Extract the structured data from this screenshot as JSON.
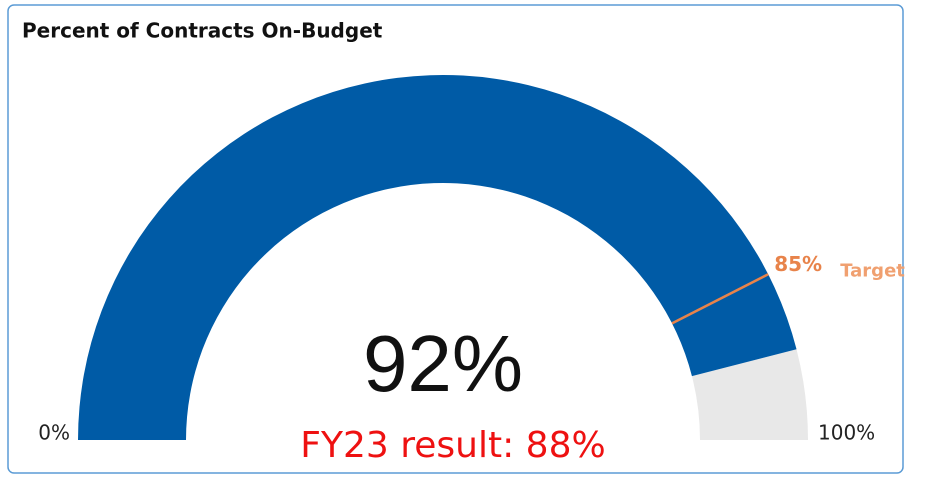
{
  "chart_data": {
    "type": "gauge",
    "title": "Percent of Contracts On-Budget",
    "values": [
      92
    ],
    "value_labels": [
      "92%"
    ],
    "color": "#005ba6",
    "track_color": "#e8e8e8",
    "ylim": [
      0,
      100
    ],
    "yticks": [
      {
        "value": 0,
        "label": "0%"
      },
      {
        "value": 100,
        "label": "100%"
      }
    ],
    "target": {
      "name": "Target",
      "value": 85,
      "label": "85%",
      "color": "#e8834a"
    },
    "annotation": "FY23 result: 88%"
  }
}
